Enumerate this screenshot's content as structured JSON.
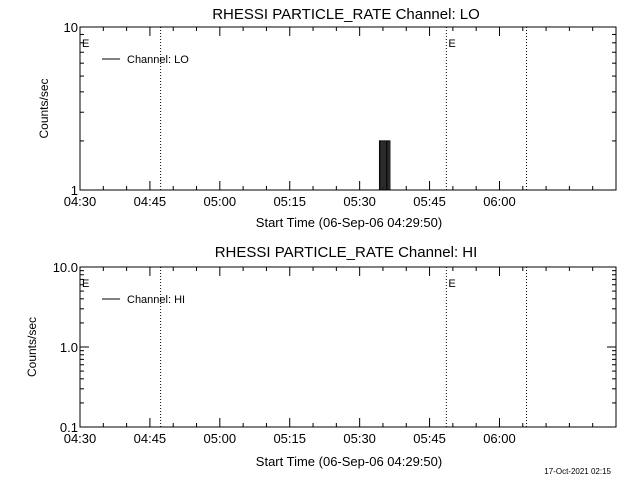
{
  "chart_data": [
    {
      "type": "line",
      "title": "RHESSI PARTICLE_RATE Channel: LO",
      "xlabel": "Start Time (06-Sep-06 04:29:50)",
      "ylabel": "Counts/sec",
      "yscale": "log",
      "ylim": [
        1,
        10
      ],
      "ytick_labels": [
        "1",
        "10"
      ],
      "xlim": [
        0,
        115
      ],
      "xtick_labels": [
        "04:30",
        "04:45",
        "05:00",
        "05:15",
        "05:30",
        "05:45",
        "06:00"
      ],
      "xtick_values": [
        0,
        15,
        30,
        45,
        60,
        75,
        90
      ],
      "legend": {
        "placement": "top-left",
        "entries": [
          "Channel: LO"
        ]
      },
      "vlines": [
        17.3,
        78.6,
        95.8
      ],
      "event_markers": [
        {
          "label": "E",
          "x": 0
        },
        {
          "label": "E",
          "x": 78.6
        }
      ],
      "series": [
        {
          "name": "Channel: LO",
          "x": [
            64.0,
            64.25,
            64.5,
            64.75,
            65.0,
            65.25,
            65.5,
            65.75,
            66.0,
            66.25,
            66.5
          ],
          "y": [
            1,
            2,
            1,
            2,
            1,
            2,
            1,
            2,
            1,
            2,
            1
          ]
        }
      ]
    },
    {
      "type": "line",
      "title": "RHESSI PARTICLE_RATE Channel: HI",
      "xlabel": "Start Time (06-Sep-06 04:29:50)",
      "ylabel": "Counts/sec",
      "yscale": "log",
      "ylim": [
        0.1,
        10
      ],
      "ytick_labels": [
        "0.1",
        "1.0",
        "10.0"
      ],
      "xlim": [
        0,
        115
      ],
      "xtick_labels": [
        "04:30",
        "04:45",
        "05:00",
        "05:15",
        "05:30",
        "05:45",
        "06:00"
      ],
      "xtick_values": [
        0,
        15,
        30,
        45,
        60,
        75,
        90
      ],
      "legend": {
        "placement": "top-left",
        "entries": [
          "Channel: HI"
        ]
      },
      "vlines": [
        17.3,
        78.6,
        95.8
      ],
      "event_markers": [
        {
          "label": "E",
          "x": 0
        },
        {
          "label": "E",
          "x": 78.6
        }
      ],
      "series": [
        {
          "name": "Channel: HI",
          "x": [],
          "y": []
        }
      ]
    }
  ],
  "timestamp": "17-Oct-2021 02:15"
}
